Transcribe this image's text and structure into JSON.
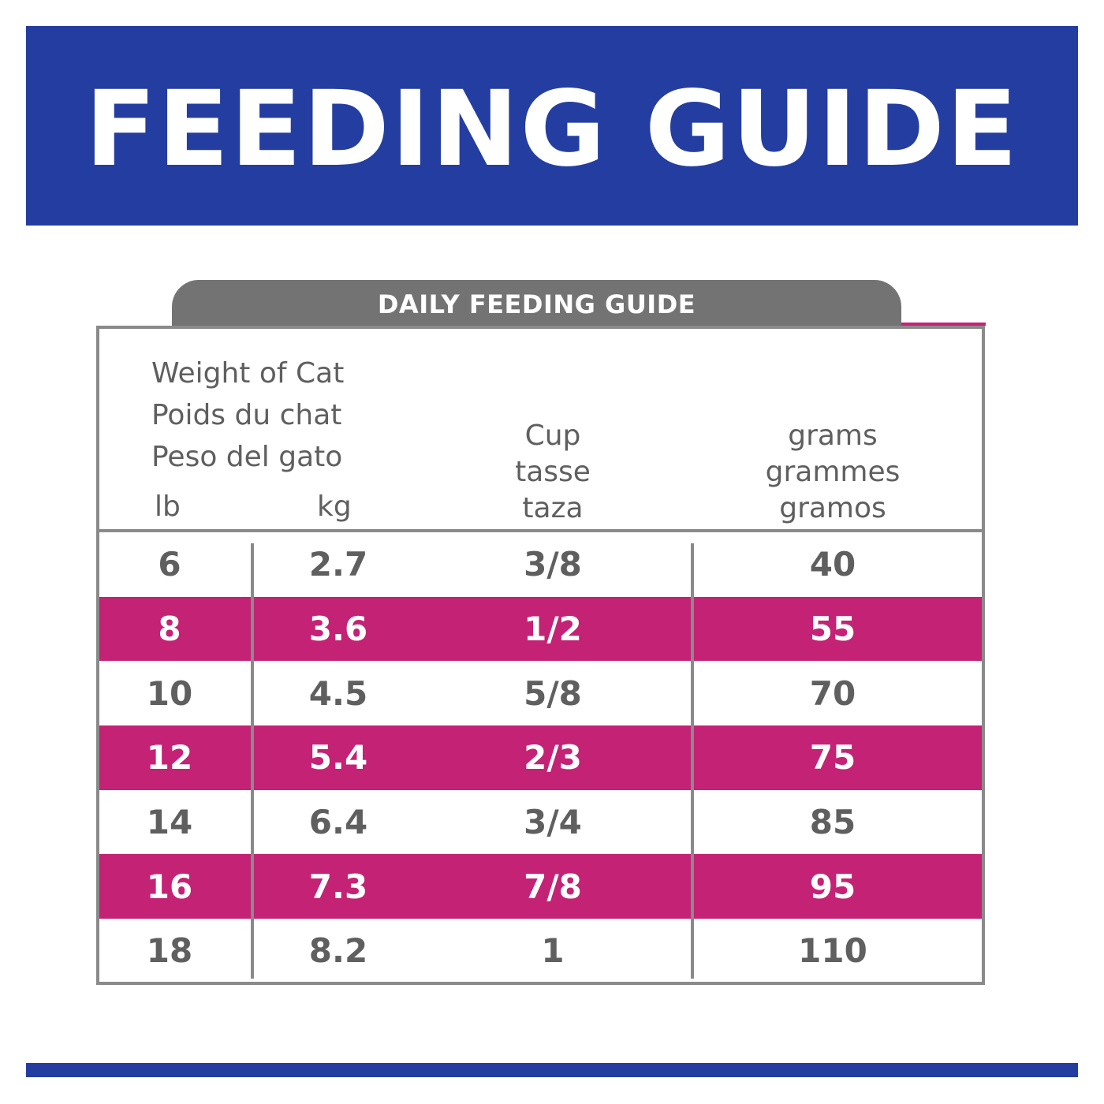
{
  "banner": {
    "title": "FEEDING GUIDE"
  },
  "guide": {
    "title": "DAILY FEEDING GUIDE",
    "weight_header": [
      "Weight of Cat",
      "Poids du chat",
      "Peso del gato"
    ],
    "lb_label": "lb",
    "kg_label": "kg",
    "cup_header": [
      "Cup",
      "tasse",
      "taza"
    ],
    "grams_header": [
      "grams",
      "grammes",
      "gramos"
    ],
    "rows": [
      {
        "lb": "6",
        "kg": "2.7",
        "cup": "3/8",
        "grams": "40"
      },
      {
        "lb": "8",
        "kg": "3.6",
        "cup": "1/2",
        "grams": "55"
      },
      {
        "lb": "10",
        "kg": "4.5",
        "cup": "5/8",
        "grams": "70"
      },
      {
        "lb": "12",
        "kg": "5.4",
        "cup": "2/3",
        "grams": "75"
      },
      {
        "lb": "14",
        "kg": "6.4",
        "cup": "3/4",
        "grams": "85"
      },
      {
        "lb": "16",
        "kg": "7.3",
        "cup": "7/8",
        "grams": "95"
      },
      {
        "lb": "18",
        "kg": "8.2",
        "cup": "1",
        "grams": "110"
      }
    ]
  },
  "colors": {
    "banner": "#243da1",
    "highlight_row": "#c42275",
    "tab": "#737373",
    "text": "#5f5f5f"
  }
}
